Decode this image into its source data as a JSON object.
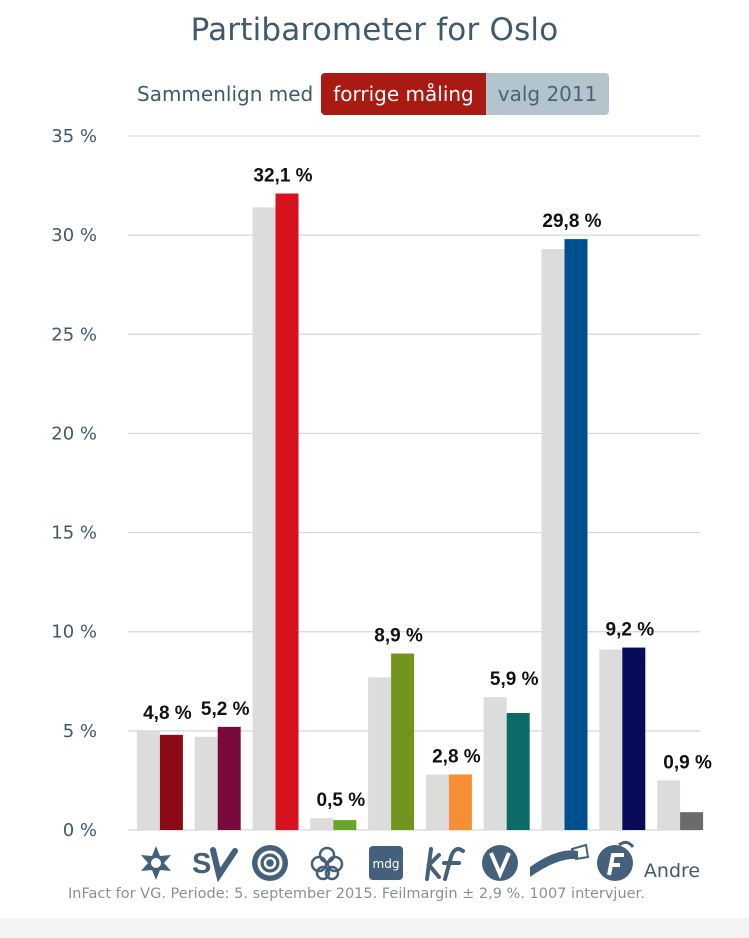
{
  "title": "Partibarometer for Oslo",
  "compare": {
    "label": "Sammenlign med",
    "options": [
      "forrige måling",
      "valg 2011"
    ],
    "selected": "forrige måling"
  },
  "footer": "InFact for VG. Periode: 5. september 2015. Feilmargin ± 2,9 %. 1007 intervjuer.",
  "colors": {
    "comparison_bar": "#dcdcdc",
    "title": "#3f5a6d",
    "active_button": "#a81a12",
    "inactive_button": "#b4c4cd"
  },
  "chart_data": {
    "type": "bar",
    "categories": [
      "rodt-icon",
      "sv-icon",
      "ap-icon",
      "sp-icon",
      "mdg-icon",
      "krf-icon",
      "venstre-icon",
      "hoyre-icon",
      "frp-icon",
      "Andre"
    ],
    "value_labels": [
      "4,8 %",
      "5,2 %",
      "32,1 %",
      "0,5 %",
      "8,9 %",
      "2,8 %",
      "5,9 %",
      "29,8 %",
      "9,2 %",
      "0,9 %"
    ],
    "series": [
      {
        "values": [
          5.0,
          4.7,
          31.4,
          0.6,
          7.7,
          2.8,
          6.7,
          29.3,
          9.1,
          2.5
        ],
        "color": "#dcdcdc"
      },
      {
        "values": [
          4.8,
          5.2,
          32.1,
          0.5,
          8.9,
          2.8,
          5.9,
          29.8,
          9.2,
          0.9
        ],
        "colors": [
          "#8c0a14",
          "#7a0a3e",
          "#d7121f",
          "#6aa52b",
          "#71941f",
          "#f68e35",
          "#0d6b67",
          "#004f8f",
          "#070b5a",
          "#6b6b6b"
        ]
      }
    ],
    "y_tick_labels": [
      "0 %",
      "5 %",
      "10 %",
      "15 %",
      "20 %",
      "25 %",
      "30 %",
      "35 %"
    ],
    "ylim": [
      0,
      35
    ],
    "grid": true
  }
}
